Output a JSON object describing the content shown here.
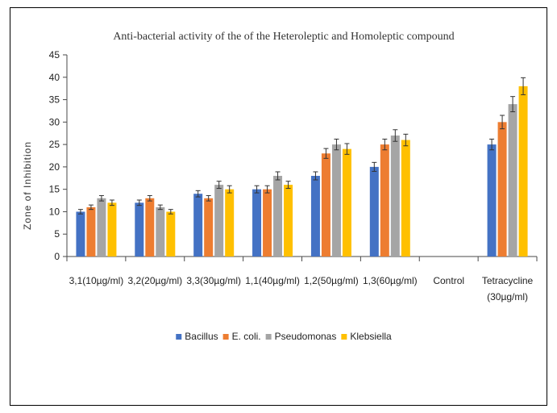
{
  "chart_data": {
    "type": "bar",
    "title": "Anti-bacterial activity of the of the Heteroleptic and Homoleptic compound",
    "xlabel": "",
    "ylabel": "Zone of Inhibition",
    "ylim": [
      0,
      45
    ],
    "yticks": [
      "0",
      "5",
      "10",
      "15",
      "20",
      "25",
      "30",
      "35",
      "40",
      "45"
    ],
    "categories": [
      [
        "3,1(10µg/ml)"
      ],
      [
        "3,2(20µg/ml)"
      ],
      [
        "3,3(30µg/ml)"
      ],
      [
        "1,1(40µg/ml)"
      ],
      [
        "1,2(50µg/ml)"
      ],
      [
        "1,3(60µg/ml)"
      ],
      [
        "Control"
      ],
      [
        "Tetracycline",
        "(30µg/ml)"
      ]
    ],
    "series": [
      {
        "name": "Bacillus",
        "color": "#4472C4",
        "values": [
          10,
          12,
          14,
          15,
          18,
          20,
          0,
          25
        ],
        "errors": [
          0.5,
          0.6,
          0.7,
          0.8,
          0.9,
          1.0,
          0,
          1.2
        ]
      },
      {
        "name": "E. coli.",
        "color": "#ED7D31",
        "values": [
          11,
          13,
          13,
          15,
          23,
          25,
          0,
          30
        ],
        "errors": [
          0.5,
          0.6,
          0.6,
          0.8,
          1.1,
          1.2,
          0,
          1.5
        ]
      },
      {
        "name": "Pseudomonas",
        "color": "#A5A5A5",
        "values": [
          13,
          11,
          16,
          18,
          25,
          27,
          0,
          34
        ],
        "errors": [
          0.6,
          0.5,
          0.8,
          0.9,
          1.2,
          1.3,
          0,
          1.7
        ]
      },
      {
        "name": "Klebsiella",
        "color": "#FFC000",
        "values": [
          12,
          10,
          15,
          16,
          24,
          26,
          0,
          38
        ],
        "errors": [
          0.6,
          0.5,
          0.8,
          0.8,
          1.2,
          1.3,
          0,
          1.9
        ]
      }
    ],
    "legend_position": "bottom",
    "grid": false,
    "error_bars": true
  }
}
